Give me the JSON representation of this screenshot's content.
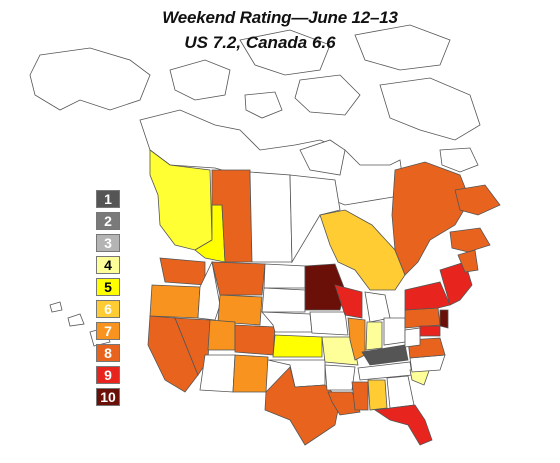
{
  "title": {
    "line1": "Weekend Rating—June 12–13",
    "line2": "US 7.2, Canada 6.6"
  },
  "legend": [
    {
      "label": "1",
      "color": "#555555",
      "text": "#ffffff"
    },
    {
      "label": "2",
      "color": "#7a7a7a",
      "text": "#ffffff"
    },
    {
      "label": "3",
      "color": "#b4b4b4",
      "text": "#ffffff"
    },
    {
      "label": "4",
      "color": "#ffff99",
      "text": "#000000"
    },
    {
      "label": "5",
      "color": "#ffff00",
      "text": "#000000"
    },
    {
      "label": "6",
      "color": "#ffcc33",
      "text": "#ffffff"
    },
    {
      "label": "7",
      "color": "#f7931e",
      "text": "#ffffff"
    },
    {
      "label": "8",
      "color": "#e8641e",
      "text": "#ffffff"
    },
    {
      "label": "9",
      "color": "#e8241e",
      "text": "#ffffff"
    },
    {
      "label": "10",
      "color": "#6b1008",
      "text": "#ffffff"
    }
  ]
}
